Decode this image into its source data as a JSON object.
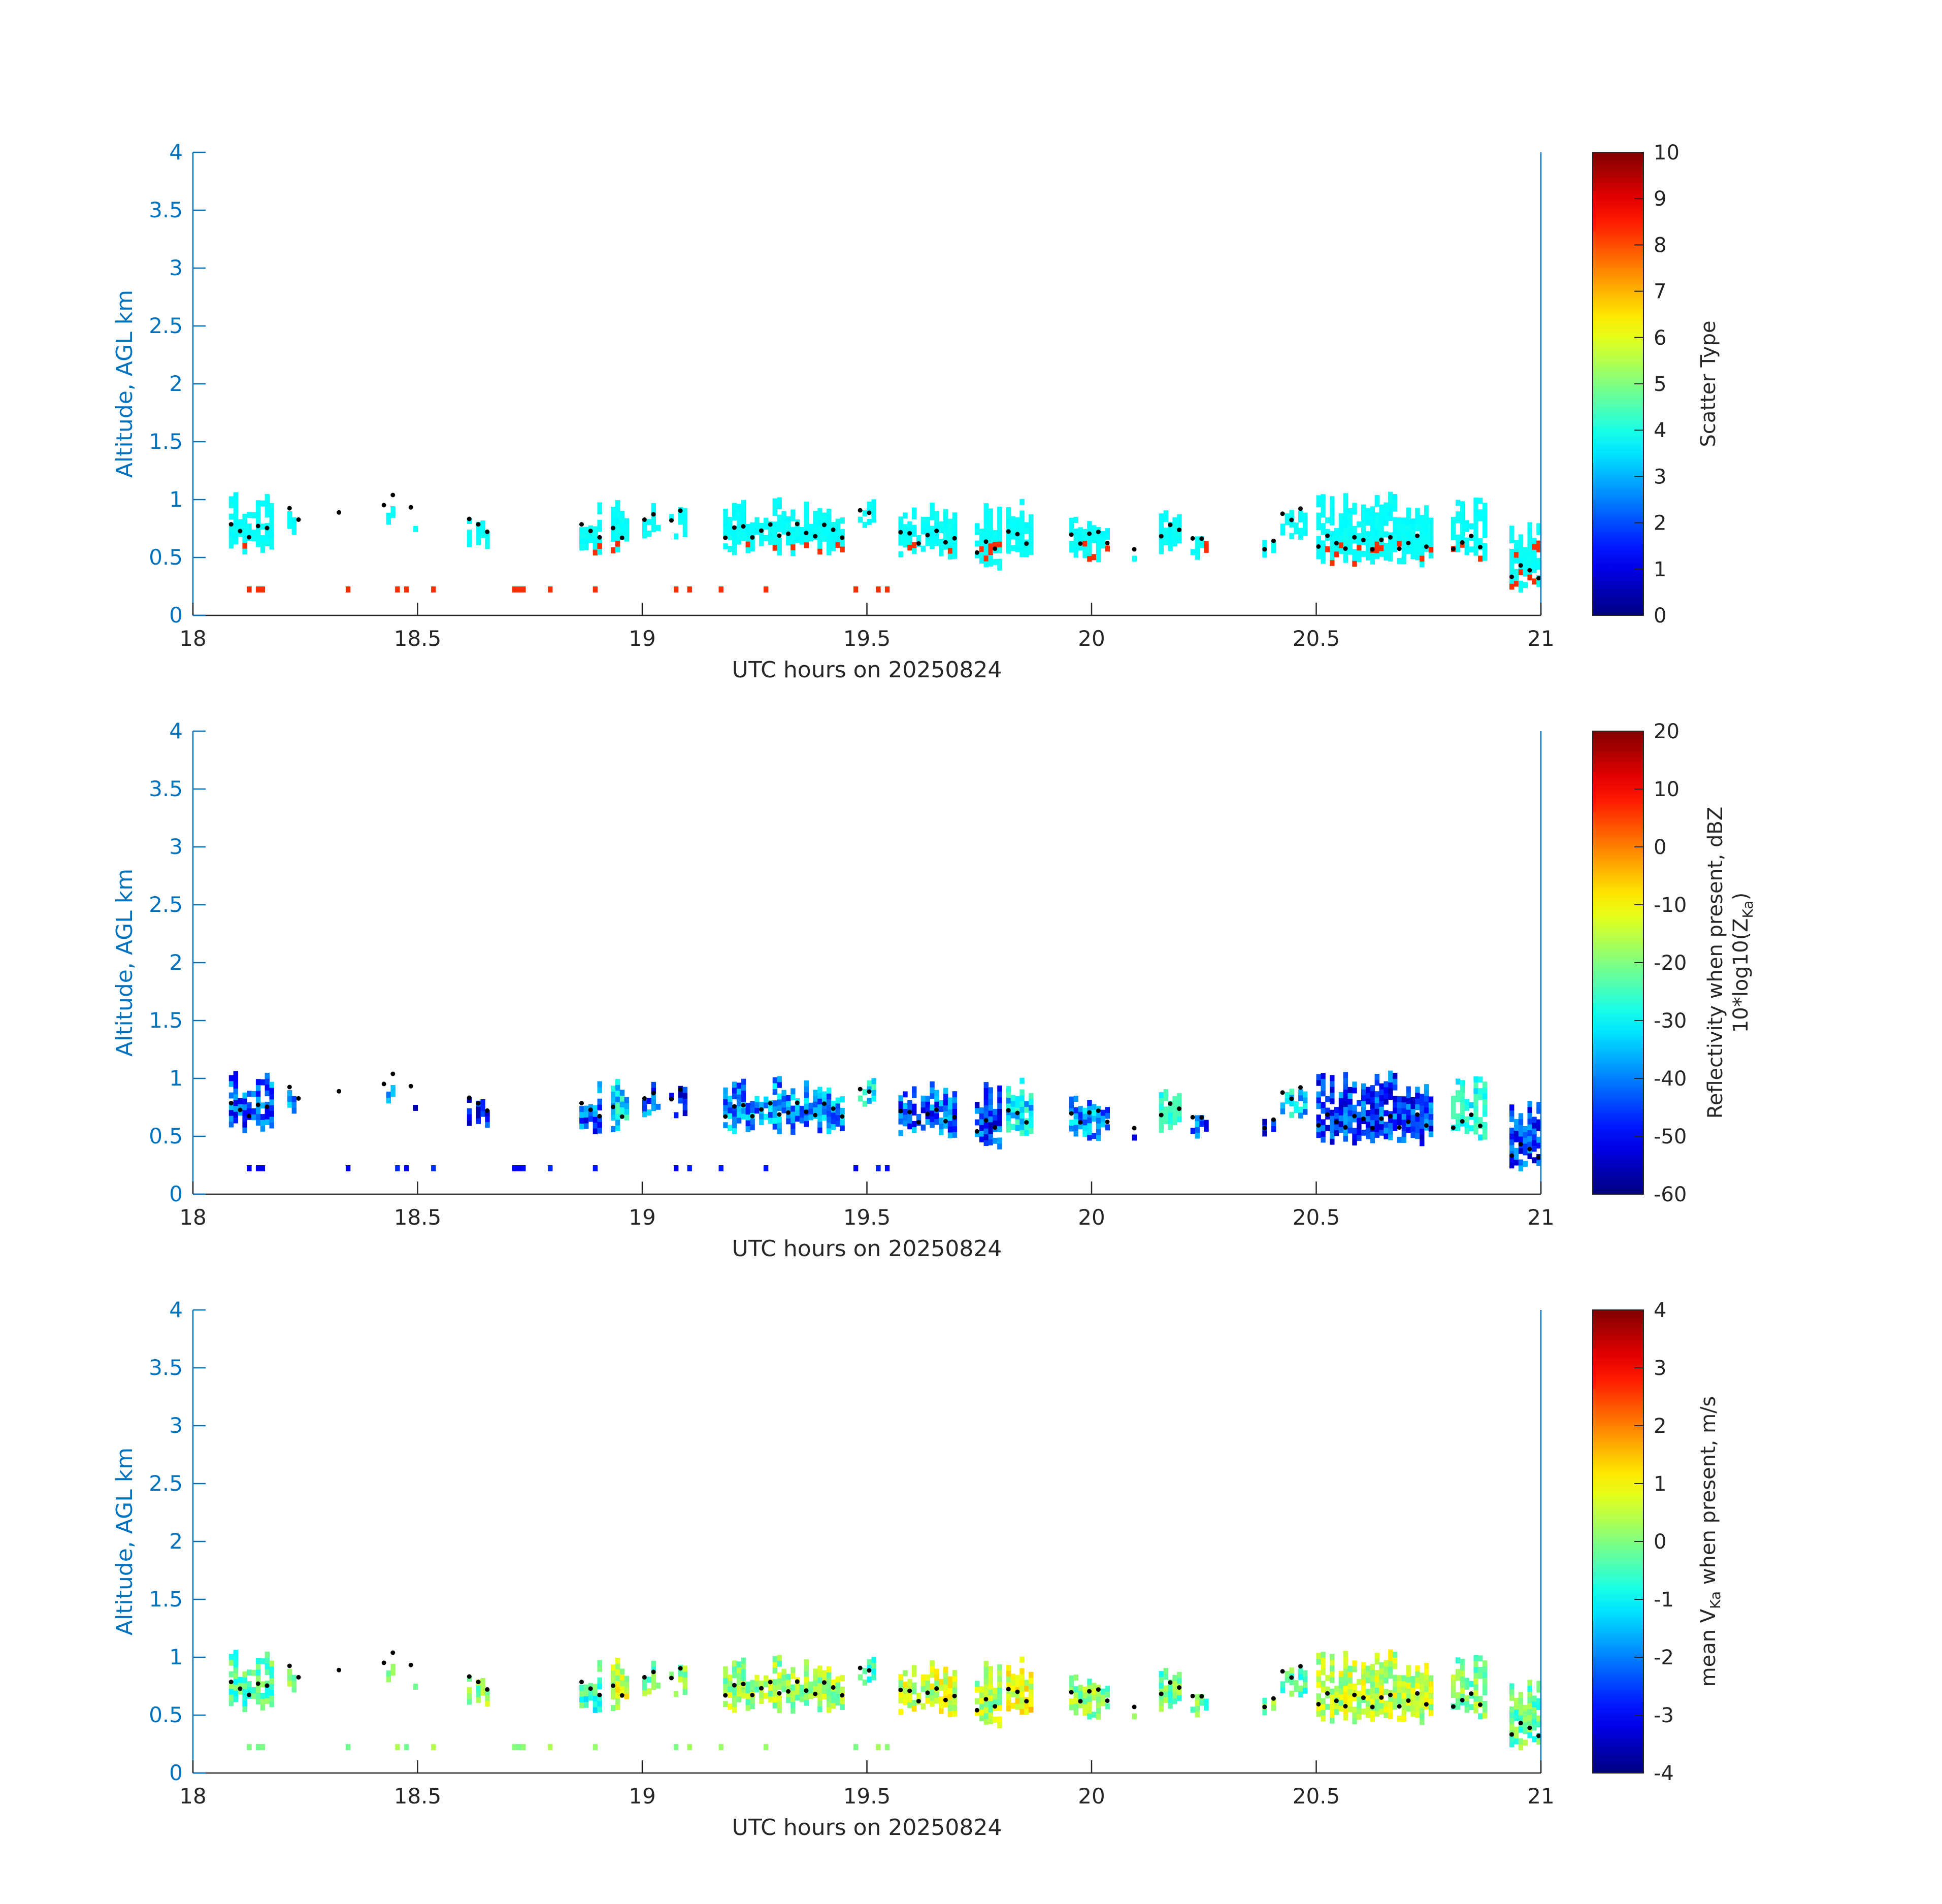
{
  "figure": {
    "colors": {
      "axis_blue": "#0072BD",
      "axis_black": "#262626",
      "background": "#ffffff"
    }
  },
  "chart_data": [
    {
      "type": "heatmap",
      "xlabel": "UTC hours on 20250824",
      "ylabel": "Altitude, AGL km",
      "xlim": [
        18,
        21
      ],
      "ylim": [
        0,
        4
      ],
      "xticks": [
        "18",
        "18.5",
        "19",
        "19.5",
        "20",
        "20.5",
        "21"
      ],
      "yticks": [
        "0",
        "0.5",
        "1",
        "1.5",
        "2",
        "2.5",
        "3",
        "3.5",
        "4"
      ],
      "colorbar": {
        "label": "Scatter Type",
        "label_sub": "",
        "label_suffix": "",
        "range": [
          0,
          10
        ],
        "ticks": [
          "0",
          "1",
          "2",
          "3",
          "4",
          "5",
          "6",
          "7",
          "8",
          "9",
          "10"
        ]
      },
      "field": "scatter_type",
      "markers": "cloud-base dots (black)"
    },
    {
      "type": "heatmap",
      "xlabel": "UTC hours on 20250824",
      "ylabel": "Altitude, AGL km",
      "xlim": [
        18,
        21
      ],
      "ylim": [
        0,
        4
      ],
      "xticks": [
        "18",
        "18.5",
        "19",
        "19.5",
        "20",
        "20.5",
        "21"
      ],
      "yticks": [
        "0",
        "0.5",
        "1",
        "1.5",
        "2",
        "2.5",
        "3",
        "3.5",
        "4"
      ],
      "colorbar": {
        "label": "Reflectivity when present, dBZ",
        "label2": "10*log10(Z",
        "label2_sub": "Ka",
        "label2_suffix": ")",
        "range": [
          -60,
          20
        ],
        "ticks": [
          "-60",
          "-50",
          "-40",
          "-30",
          "-20",
          "-10",
          "0",
          "10",
          "20"
        ]
      },
      "field": "reflectivity",
      "markers": "cloud-base dots (black)"
    },
    {
      "type": "heatmap",
      "xlabel": "UTC hours on 20250824",
      "ylabel": "Altitude, AGL km",
      "xlim": [
        18,
        21
      ],
      "ylim": [
        0,
        4
      ],
      "xticks": [
        "18",
        "18.5",
        "19",
        "19.5",
        "20",
        "20.5",
        "21"
      ],
      "yticks": [
        "0",
        "0.5",
        "1",
        "1.5",
        "2",
        "2.5",
        "3",
        "3.5",
        "4"
      ],
      "colorbar": {
        "label": "mean V",
        "label_sub": "Ka",
        "label_suffix": " when present, m/s",
        "range": [
          -4,
          4
        ],
        "ticks": [
          "-4",
          "-3",
          "-2",
          "-1",
          "0",
          "1",
          "2",
          "3",
          "4"
        ]
      },
      "field": "mean_velocity",
      "markers": "cloud-base dots (black)"
    }
  ],
  "clusters": [
    {
      "t0": 18.08,
      "t1": 18.18,
      "lo": 0.55,
      "hi": 1.05,
      "v": [
        0.8,
        0.35,
        0.35
      ]
    },
    {
      "t0": 18.21,
      "t1": 18.24,
      "lo": 0.7,
      "hi": 0.95,
      "v": [
        0.9,
        0.5,
        0.6
      ]
    },
    {
      "t0": 18.32,
      "t1": 18.34,
      "lo": 0.65,
      "hi": 0.75,
      "v": [
        0.5,
        0.55,
        0.45
      ]
    },
    {
      "t0": 18.42,
      "t1": 18.45,
      "lo": 0.8,
      "hi": 0.95,
      "v": [
        0.6,
        0.5,
        0.55
      ]
    },
    {
      "t0": 18.48,
      "t1": 18.5,
      "lo": 0.75,
      "hi": 0.88,
      "v": [
        0.2,
        0.1,
        0.5
      ]
    },
    {
      "t0": 18.61,
      "t1": 18.66,
      "lo": 0.6,
      "hi": 0.85,
      "v": [
        0.15,
        0.2,
        0.55
      ]
    },
    {
      "t0": 18.86,
      "t1": 18.91,
      "lo": 0.55,
      "hi": 0.95,
      "v": [
        0.7,
        0.35,
        0.25
      ]
    },
    {
      "t0": 18.93,
      "t1": 18.97,
      "lo": 0.55,
      "hi": 1.0,
      "v": [
        0.35,
        0.6,
        0.75
      ]
    },
    {
      "t0": 19.0,
      "t1": 19.04,
      "lo": 0.7,
      "hi": 0.95,
      "v": [
        0.2,
        0.4,
        0.5
      ]
    },
    {
      "t0": 19.06,
      "t1": 19.1,
      "lo": 0.7,
      "hi": 0.95,
      "v": [
        0.4,
        0.2,
        0.55
      ]
    },
    {
      "t0": 19.18,
      "t1": 19.45,
      "lo": 0.55,
      "hi": 1.0,
      "v": [
        0.85,
        0.45,
        0.6
      ]
    },
    {
      "t0": 19.48,
      "t1": 19.52,
      "lo": 0.75,
      "hi": 1.0,
      "v": [
        0.5,
        0.65,
        0.3
      ]
    },
    {
      "t0": 19.57,
      "t1": 19.7,
      "lo": 0.5,
      "hi": 0.95,
      "v": [
        0.3,
        0.35,
        0.75
      ]
    },
    {
      "t0": 19.74,
      "t1": 19.8,
      "lo": 0.4,
      "hi": 0.95,
      "v": [
        0.75,
        0.3,
        0.65
      ]
    },
    {
      "t0": 19.81,
      "t1": 19.87,
      "lo": 0.5,
      "hi": 1.0,
      "v": [
        0.5,
        0.6,
        0.85
      ]
    },
    {
      "t0": 19.95,
      "t1": 20.04,
      "lo": 0.5,
      "hi": 0.9,
      "v": [
        0.7,
        0.45,
        0.55
      ]
    },
    {
      "t0": 20.09,
      "t1": 20.1,
      "lo": 0.45,
      "hi": 0.6,
      "v": [
        0.1,
        0.1,
        0.5
      ]
    },
    {
      "t0": 20.15,
      "t1": 20.2,
      "lo": 0.55,
      "hi": 1.0,
      "v": [
        0.45,
        0.8,
        0.4
      ]
    },
    {
      "t0": 20.22,
      "t1": 20.26,
      "lo": 0.45,
      "hi": 0.75,
      "v": [
        0.25,
        0.35,
        0.45
      ]
    },
    {
      "t0": 20.38,
      "t1": 20.41,
      "lo": 0.45,
      "hi": 0.68,
      "v": [
        0.3,
        0.2,
        0.5
      ]
    },
    {
      "t0": 20.42,
      "t1": 20.48,
      "lo": 0.7,
      "hi": 0.98,
      "v": [
        0.65,
        0.55,
        0.35
      ]
    },
    {
      "t0": 20.5,
      "t1": 20.76,
      "lo": 0.45,
      "hi": 1.05,
      "v": [
        0.9,
        0.3,
        0.7
      ]
    },
    {
      "t0": 20.8,
      "t1": 20.88,
      "lo": 0.45,
      "hi": 1.0,
      "v": [
        0.4,
        0.75,
        0.5
      ]
    },
    {
      "t0": 20.93,
      "t1": 21.0,
      "lo": 0.2,
      "hi": 0.85,
      "v": [
        0.6,
        0.3,
        0.4
      ]
    }
  ],
  "low_band": [
    18.12,
    18.14,
    18.15,
    18.34,
    18.45,
    18.47,
    18.53,
    18.71,
    18.72,
    18.73,
    18.79,
    18.89,
    19.07,
    19.1,
    19.17,
    19.27,
    19.47,
    19.52,
    19.54
  ]
}
